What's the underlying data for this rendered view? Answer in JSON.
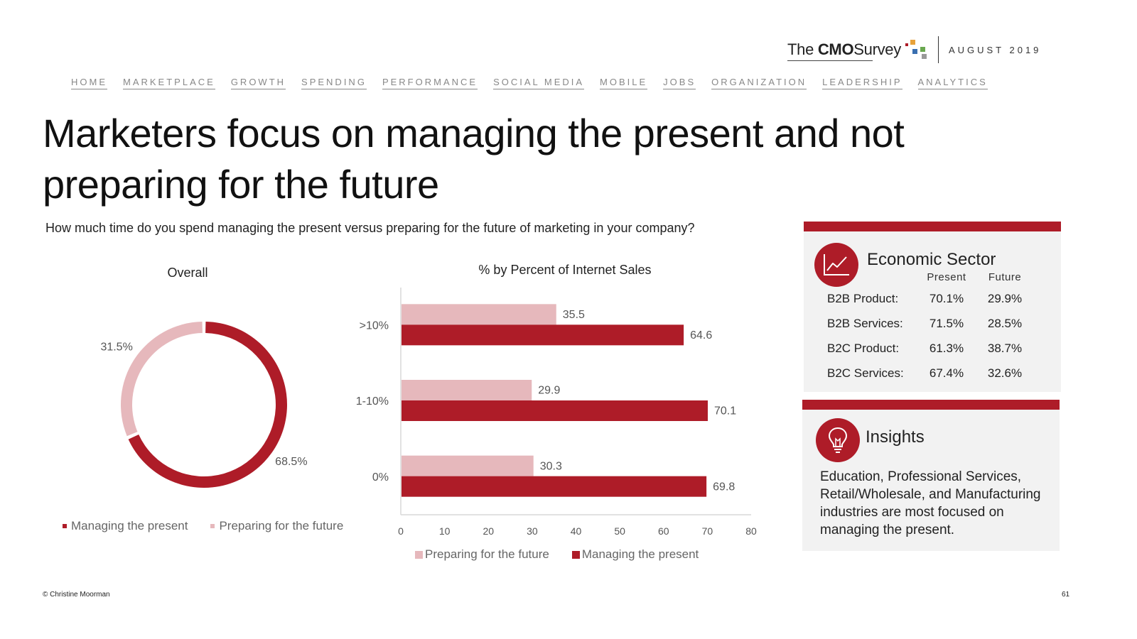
{
  "header": {
    "brand_prefix": "The",
    "brand_strong": "CMO",
    "brand_suffix": "Survey",
    "date": "AUGUST 2019",
    "dot_colors": [
      "#ae1c28",
      "#e8a23a",
      "#3a6fb0",
      "#6aa84f",
      "#999999"
    ]
  },
  "nav": [
    "HOME",
    "MARKETPLACE",
    "GROWTH",
    "SPENDING",
    "PERFORMANCE",
    "SOCIAL MEDIA",
    "MOBILE",
    "JOBS",
    "ORGANIZATION",
    "LEADERSHIP",
    "ANALYTICS"
  ],
  "title": "Marketers focus on managing the present and not preparing for the future",
  "question": "How much time do you spend managing the present versus preparing for the future of marketing in your company?",
  "colors": {
    "present": "#ae1c28",
    "future": "#e6b8bc",
    "grid": "#d9d9d9",
    "axis_text": "#555555"
  },
  "chart_data": [
    {
      "type": "pie",
      "title": "Overall",
      "donut": true,
      "slices": [
        {
          "label": "Managing the present",
          "value": 68.5,
          "display": "68.5%",
          "color": "#ae1c28"
        },
        {
          "label": "Preparing for the future",
          "value": 31.5,
          "display": "31.5%",
          "color": "#e6b8bc"
        }
      ],
      "legend": [
        "Managing the present",
        "Preparing for the future"
      ],
      "legend_placement": "bottom"
    },
    {
      "type": "bar",
      "orientation": "horizontal",
      "title": "% by Percent of Internet Sales",
      "categories": [
        ">10%",
        "1-10%",
        "0%"
      ],
      "series": [
        {
          "name": "Preparing for the future",
          "values": [
            35.5,
            29.9,
            30.3
          ],
          "color": "#e6b8bc"
        },
        {
          "name": "Managing the present",
          "values": [
            64.6,
            70.1,
            69.8
          ],
          "color": "#ae1c28"
        }
      ],
      "xlim": [
        0,
        80
      ],
      "xticks": [
        0,
        10,
        20,
        30,
        40,
        50,
        60,
        70,
        80
      ],
      "grid": false,
      "legend_placement": "bottom"
    }
  ],
  "sector": {
    "heading": "Economic Sector",
    "col_present": "Present",
    "col_future": "Future",
    "rows": [
      {
        "label": "B2B Product:",
        "present": "70.1%",
        "future": "29.9%"
      },
      {
        "label": "B2B Services:",
        "present": "71.5%",
        "future": "28.5%"
      },
      {
        "label": "B2C Product:",
        "present": "61.3%",
        "future": "38.7%"
      },
      {
        "label": "B2C Services:",
        "present": "67.4%",
        "future": "32.6%"
      }
    ],
    "icon": "line-chart-icon"
  },
  "insights": {
    "heading": "Insights",
    "text": "Education, Professional Services, Retail/Wholesale, and Manufacturing industries are most focused on managing the present.",
    "icon": "lightbulb-icon"
  },
  "footer": {
    "copyright": "© Christine Moorman",
    "page": "61"
  }
}
